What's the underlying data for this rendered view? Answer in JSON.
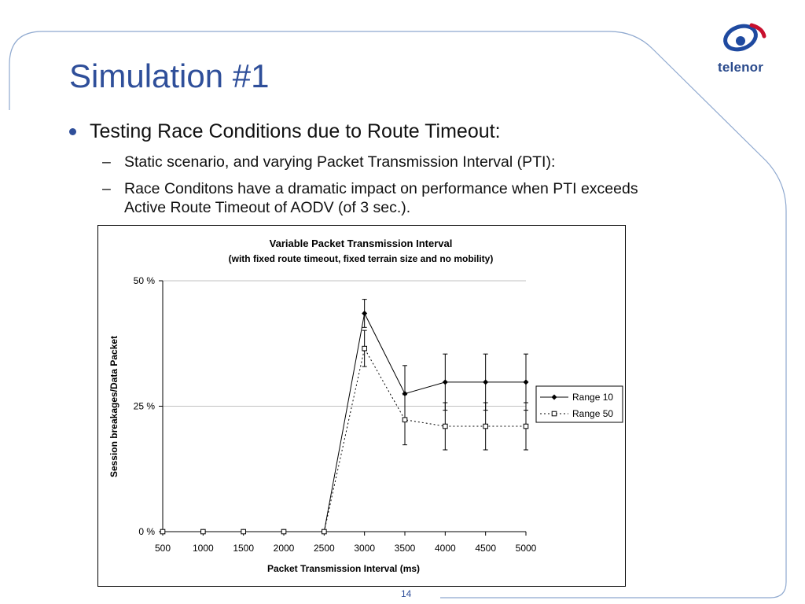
{
  "slide": {
    "title": "Simulation #1",
    "bullet1": "Testing Race Conditions due to Route Timeout:",
    "sub1": "Static scenario, and varying Packet Transmission Interval (PTI):",
    "sub2": "Race Conditons have a dramatic impact on performance when PTI exceeds Active Route Timeout of AODV (of 3 sec.).",
    "dash": "–",
    "page_number": "14",
    "logo_text": "telenor",
    "accent_color": "#2f4f9a"
  },
  "chart_data": {
    "type": "line",
    "title": "Variable Packet Transmission Interval",
    "subtitle": "(with fixed route timeout, fixed terrain size and no mobility)",
    "xlabel": "Packet Transmission Interval (ms)",
    "ylabel": "Session breakages/Data Packet",
    "x": [
      500,
      1000,
      1500,
      2000,
      2500,
      3000,
      3500,
      4000,
      4500,
      5000
    ],
    "ylim": [
      0,
      50
    ],
    "yticks": [
      0,
      25,
      50
    ],
    "ytick_labels": [
      "0 %",
      "25 %",
      "50 %"
    ],
    "grid": "horizontal",
    "legend_position": "right",
    "series": [
      {
        "name": "Range 10",
        "marker": "filled-diamond",
        "line": "solid",
        "values": [
          0,
          0,
          0,
          0,
          0,
          43.5,
          27.5,
          29.8,
          29.8,
          29.8
        ],
        "error": [
          0,
          0,
          0,
          0,
          0,
          2.8,
          5.6,
          5.6,
          5.6,
          5.6
        ]
      },
      {
        "name": "Range 50",
        "marker": "open-square",
        "line": "dotted",
        "values": [
          0,
          0,
          0,
          0,
          0,
          36.5,
          22.3,
          21.0,
          21.0,
          21.0
        ],
        "error": [
          0,
          0,
          0,
          0,
          0,
          3.6,
          5.0,
          4.7,
          4.7,
          4.7
        ]
      }
    ]
  }
}
